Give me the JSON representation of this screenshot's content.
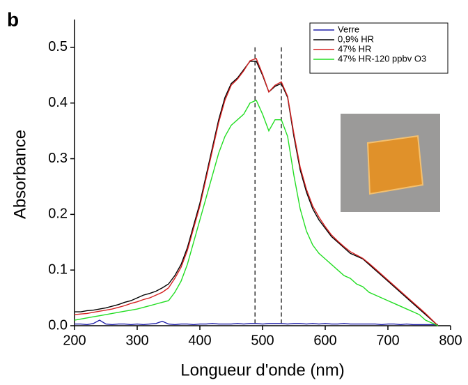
{
  "chart_data": {
    "type": "line",
    "panel_label": "b",
    "x_label": "Longueur d'onde (nm)",
    "y_label": "Absorbance",
    "xlim": [
      200,
      800
    ],
    "ylim": [
      0,
      0.55
    ],
    "xticks": [
      200,
      300,
      400,
      500,
      600,
      700,
      800
    ],
    "yticks": [
      {
        "value": 0,
        "label": "0.0"
      },
      0.1,
      0.2,
      0.3,
      0.4,
      0.5
    ],
    "legend": "upper right",
    "reference_lines": [
      488,
      530
    ],
    "x": [
      200,
      210,
      220,
      230,
      240,
      250,
      260,
      270,
      280,
      290,
      300,
      310,
      320,
      330,
      340,
      350,
      360,
      370,
      380,
      390,
      400,
      410,
      420,
      430,
      440,
      450,
      460,
      470,
      480,
      490,
      500,
      510,
      520,
      530,
      540,
      550,
      560,
      570,
      580,
      590,
      600,
      610,
      620,
      630,
      640,
      650,
      660,
      670,
      680,
      690,
      700,
      710,
      720,
      730,
      740,
      750,
      760,
      770,
      780
    ],
    "series": [
      {
        "name": "Verre",
        "color": "#1f1fa8",
        "values": [
          0.003,
          0.003,
          0.002,
          0.004,
          0.01,
          0.003,
          0.002,
          0.003,
          0.003,
          0.002,
          0.003,
          0.002,
          0.003,
          0.004,
          0.008,
          0.003,
          0.002,
          0.003,
          0.003,
          0.002,
          0.003,
          0.003,
          0.004,
          0.003,
          0.003,
          0.003,
          0.004,
          0.003,
          0.004,
          0.004,
          0.003,
          0.004,
          0.004,
          0.004,
          0.003,
          0.004,
          0.004,
          0.003,
          0.004,
          0.003,
          0.004,
          0.003,
          0.003,
          0.004,
          0.003,
          0.003,
          0.003,
          0.003,
          0.003,
          0.002,
          0.003,
          0.003,
          0.002,
          0.003,
          0.002,
          0.002,
          0.002,
          0.002,
          0.002
        ]
      },
      {
        "name": "0,9% HR",
        "color": "#000000",
        "values": [
          0.025,
          0.025,
          0.027,
          0.028,
          0.03,
          0.032,
          0.035,
          0.038,
          0.042,
          0.045,
          0.05,
          0.055,
          0.058,
          0.062,
          0.068,
          0.075,
          0.09,
          0.11,
          0.14,
          0.18,
          0.22,
          0.27,
          0.32,
          0.37,
          0.41,
          0.435,
          0.445,
          0.46,
          0.475,
          0.475,
          0.45,
          0.42,
          0.43,
          0.435,
          0.41,
          0.34,
          0.28,
          0.24,
          0.21,
          0.19,
          0.175,
          0.16,
          0.15,
          0.14,
          0.13,
          0.125,
          0.12,
          0.11,
          0.1,
          0.09,
          0.08,
          0.07,
          0.06,
          0.05,
          0.04,
          0.03,
          0.02,
          0.01,
          0.0
        ]
      },
      {
        "name": "47% HR",
        "color": "#d42020",
        "values": [
          0.02,
          0.021,
          0.022,
          0.024,
          0.026,
          0.028,
          0.03,
          0.033,
          0.036,
          0.04,
          0.043,
          0.047,
          0.05,
          0.055,
          0.06,
          0.068,
          0.085,
          0.105,
          0.135,
          0.175,
          0.215,
          0.265,
          0.315,
          0.365,
          0.405,
          0.432,
          0.443,
          0.458,
          0.476,
          0.48,
          0.452,
          0.42,
          0.432,
          0.438,
          0.412,
          0.345,
          0.285,
          0.245,
          0.215,
          0.195,
          0.178,
          0.163,
          0.152,
          0.142,
          0.133,
          0.127,
          0.121,
          0.112,
          0.102,
          0.092,
          0.082,
          0.072,
          0.062,
          0.052,
          0.042,
          0.032,
          0.022,
          0.011,
          0.0
        ]
      },
      {
        "name": "47% HR-120 ppbv O3",
        "color": "#22dd22",
        "values": [
          0.01,
          0.012,
          0.014,
          0.016,
          0.018,
          0.02,
          0.022,
          0.024,
          0.026,
          0.028,
          0.03,
          0.033,
          0.036,
          0.039,
          0.042,
          0.045,
          0.06,
          0.08,
          0.11,
          0.15,
          0.19,
          0.23,
          0.27,
          0.31,
          0.34,
          0.36,
          0.37,
          0.38,
          0.4,
          0.405,
          0.38,
          0.35,
          0.37,
          0.37,
          0.34,
          0.27,
          0.21,
          0.17,
          0.145,
          0.13,
          0.12,
          0.11,
          0.1,
          0.09,
          0.085,
          0.075,
          0.07,
          0.06,
          0.055,
          0.05,
          0.045,
          0.04,
          0.035,
          0.03,
          0.025,
          0.02,
          0.01,
          0.005,
          0.0
        ]
      }
    ]
  }
}
